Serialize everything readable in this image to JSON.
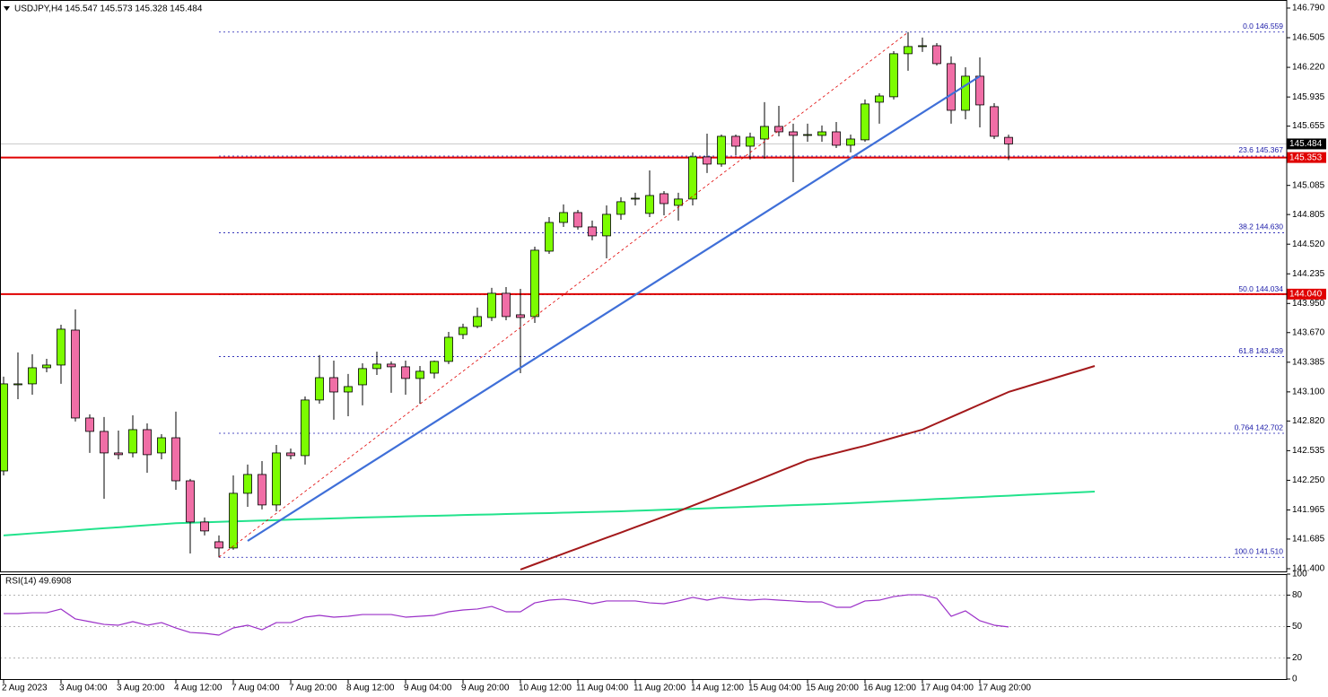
{
  "chart_data": [
    {
      "type": "candlestick",
      "title": "USDJPY,H4  145.547 145.573 145.328 145.484",
      "categories": [
        "2 Aug 2023",
        null,
        null,
        null,
        "3 Aug 04:00",
        null,
        null,
        null,
        "3 Aug 20:00",
        null,
        null,
        null,
        "4 Aug 12:00",
        null,
        null,
        null,
        "7 Aug 04:00",
        null,
        null,
        null,
        "7 Aug 20:00",
        null,
        null,
        null,
        "8 Aug 12:00",
        null,
        null,
        null,
        "9 Aug 04:00",
        null,
        null,
        null,
        "9 Aug 20:00",
        null,
        null,
        null,
        "10 Aug 12:00",
        null,
        null,
        null,
        "11 Aug 04:00",
        null,
        null,
        null,
        "11 Aug 20:00",
        null,
        null,
        null,
        "14 Aug 12:00",
        null,
        null,
        null,
        "15 Aug 04:00",
        null,
        null,
        null,
        "15 Aug 20:00",
        null,
        null,
        null,
        "16 Aug 12:00",
        null,
        null,
        null,
        "17 Aug 04:00",
        null,
        null,
        null,
        "17 Aug 20:00",
        null,
        null,
        null,
        null,
        null,
        null,
        null,
        null
      ],
      "open": [
        142.34,
        143.168,
        143.177,
        143.332,
        143.358,
        143.694,
        142.849,
        142.72,
        142.513,
        142.513,
        142.737,
        142.513,
        142.659,
        142.245,
        141.849,
        141.659,
        141.599,
        142.125,
        142.306,
        142.013,
        142.513,
        142.487,
        143.022,
        143.237,
        143.099,
        143.168,
        143.324,
        143.367,
        143.341,
        143.229,
        143.28,
        143.393,
        143.651,
        143.729,
        143.815,
        144.048,
        143.841,
        143.824,
        144.453,
        144.729,
        144.824,
        144.686,
        144.6,
        144.807,
        144.954,
        144.816,
        145.005,
        144.893,
        144.954,
        145.359,
        145.29,
        145.557,
        145.462,
        145.531,
        145.652,
        145.6,
        145.566,
        145.566,
        145.6,
        145.471,
        145.523,
        145.885,
        145.937,
        146.351,
        146.42,
        146.428,
        146.256,
        145.807,
        146.135,
        145.842,
        145.547,
        null,
        null,
        null,
        null,
        null,
        null
      ],
      "high": [
        143.246,
        143.479,
        143.462,
        143.418,
        143.746,
        143.893,
        142.884,
        142.858,
        142.728,
        142.875,
        142.797,
        142.694,
        142.91,
        142.263,
        141.892,
        141.72,
        142.297,
        142.401,
        142.435,
        142.59,
        142.556,
        143.056,
        143.453,
        143.401,
        143.272,
        143.375,
        143.487,
        143.393,
        143.401,
        143.349,
        143.401,
        143.677,
        143.755,
        143.91,
        144.1,
        144.108,
        144.091,
        144.496,
        144.781,
        144.902,
        144.85,
        144.747,
        144.893,
        144.971,
        145.014,
        145.229,
        145.031,
        145.014,
        145.402,
        145.583,
        145.574,
        145.574,
        145.592,
        145.885,
        145.85,
        145.678,
        145.678,
        145.661,
        145.695,
        145.574,
        145.911,
        145.971,
        146.376,
        146.559,
        146.506,
        146.454,
        146.325,
        146.221,
        146.316,
        145.876,
        145.573,
        null,
        null,
        null,
        null,
        null,
        null
      ],
      "low": [
        142.297,
        143.03,
        143.073,
        143.289,
        143.177,
        142.815,
        142.513,
        142.073,
        142.452,
        142.47,
        142.323,
        142.452,
        142.159,
        141.547,
        141.72,
        141.51,
        141.582,
        141.995,
        141.97,
        141.952,
        142.452,
        142.401,
        142.987,
        142.832,
        142.866,
        142.97,
        143.263,
        143.091,
        143.073,
        142.987,
        143.229,
        143.367,
        143.608,
        143.712,
        143.781,
        143.789,
        143.28,
        143.763,
        144.427,
        144.686,
        144.66,
        144.557,
        144.384,
        144.755,
        144.893,
        144.781,
        144.798,
        144.747,
        144.893,
        145.204,
        145.264,
        145.376,
        145.333,
        145.342,
        145.557,
        145.117,
        145.505,
        145.505,
        145.445,
        145.402,
        145.505,
        145.678,
        145.911,
        146.187,
        146.368,
        146.238,
        145.678,
        145.721,
        145.643,
        145.531,
        145.328,
        null,
        null,
        null,
        null,
        null,
        null
      ],
      "close": [
        143.177,
        143.177,
        143.332,
        143.358,
        143.703,
        142.849,
        142.72,
        142.513,
        142.496,
        142.737,
        142.496,
        142.659,
        142.245,
        141.849,
        141.763,
        141.599,
        142.125,
        142.306,
        142.013,
        142.513,
        142.487,
        143.022,
        143.237,
        143.099,
        143.151,
        143.324,
        143.367,
        143.341,
        143.229,
        143.298,
        143.393,
        143.625,
        143.72,
        143.824,
        144.048,
        143.824,
        143.815,
        144.462,
        144.729,
        144.824,
        144.686,
        144.6,
        144.807,
        144.928,
        144.962,
        144.988,
        144.91,
        144.954,
        145.359,
        145.29,
        145.557,
        145.462,
        145.549,
        145.652,
        145.6,
        145.566,
        145.574,
        145.6,
        145.471,
        145.531,
        145.868,
        145.945,
        146.351,
        146.42,
        146.428,
        146.256,
        145.807,
        146.135,
        145.859,
        145.557,
        145.484,
        null,
        null,
        null,
        null,
        null,
        null
      ],
      "up_color": "#7cfc00",
      "down_color": "#f06ea6",
      "ma_lines": [
        {
          "color": "#22e38c",
          "values": [
            141.72,
            141.73,
            141.74,
            141.749,
            141.759,
            141.769,
            141.779,
            141.789,
            141.798,
            141.808,
            141.818,
            141.828,
            141.838,
            141.842,
            141.846,
            141.851,
            141.855,
            141.859,
            141.863,
            141.867,
            141.872,
            141.876,
            141.88,
            141.884,
            141.888,
            141.893,
            141.896,
            141.899,
            141.903,
            141.906,
            141.909,
            141.912,
            141.916,
            141.919,
            141.922,
            141.926,
            141.929,
            141.932,
            141.935,
            141.939,
            141.942,
            141.945,
            141.949,
            141.952,
            141.957,
            141.962,
            141.967,
            141.972,
            141.976,
            141.981,
            141.986,
            141.991,
            141.996,
            142.001,
            142.006,
            142.011,
            142.015,
            142.02,
            142.025,
            142.03,
            142.037,
            142.043,
            142.05,
            142.056,
            142.063,
            142.07,
            142.076,
            142.083,
            142.089,
            142.096,
            142.102,
            142.109,
            142.116,
            142.122,
            142.129,
            142.135,
            142.142
          ]
        },
        {
          "color": "#a3191b",
          "values": [
            null,
            null,
            null,
            null,
            null,
            null,
            null,
            null,
            null,
            null,
            null,
            null,
            null,
            null,
            null,
            null,
            null,
            null,
            null,
            null,
            null,
            null,
            null,
            null,
            null,
            null,
            null,
            null,
            null,
            null,
            null,
            null,
            null,
            null,
            null,
            null,
            141.392,
            141.443,
            141.494,
            141.545,
            141.596,
            141.647,
            141.698,
            141.748,
            141.799,
            141.85,
            141.901,
            141.952,
            142.006,
            142.06,
            142.114,
            142.168,
            142.223,
            142.278,
            142.334,
            142.389,
            142.444,
            142.479,
            142.513,
            142.548,
            142.582,
            142.621,
            142.66,
            142.699,
            142.737,
            142.798,
            142.858,
            142.918,
            142.979,
            143.039,
            143.099,
            143.141,
            143.183,
            143.224,
            143.266,
            143.307,
            143.349
          ]
        }
      ],
      "fib_levels": [
        {
          "value": 146.559,
          "label": "0.0 146.559"
        },
        {
          "value": 145.367,
          "label": "23.6 145.367"
        },
        {
          "value": 144.63,
          "label": "38.2 144.630"
        },
        {
          "value": 144.034,
          "label": "50.0 144.034"
        },
        {
          "value": 143.439,
          "label": "61.8 143.439"
        },
        {
          "value": 142.702,
          "label": "0.764 142.702"
        },
        {
          "value": 141.51,
          "label": "100.0 141.510"
        }
      ],
      "fib_color": "#1a1ab0",
      "hlines": [
        145.353,
        {
          "value": 144.04,
          "label": "144.040"
        }
      ],
      "hline_color": "#e00000",
      "last_price": 145.484,
      "ylim": [
        141.374,
        146.833
      ],
      "yticks": [
        {
          "value": 146.79,
          "label": "146.790"
        },
        146.505,
        {
          "value": 146.22,
          "label": "146.220"
        },
        145.935,
        145.655,
        145.085,
        144.805,
        {
          "value": 144.52,
          "label": "144.520"
        },
        144.235,
        {
          "value": 143.95,
          "label": "143.950"
        },
        {
          "value": 143.67,
          "label": "143.670"
        },
        143.385,
        {
          "value": 143.1,
          "label": "143.100"
        },
        {
          "value": 142.82,
          "label": "142.820"
        },
        142.535,
        {
          "value": 142.25,
          "label": "142.250"
        },
        141.965,
        141.685,
        {
          "value": 141.4,
          "label": "141.400"
        }
      ],
      "grid": false
    },
    {
      "type": "line",
      "title": "RSI(14) 49.6908",
      "color": "#9b30c8",
      "values": [
        62.4,
        62.4,
        63.2,
        63.2,
        66.7,
        57.3,
        54.7,
        52.1,
        51.3,
        54.7,
        51.3,
        53.8,
        48.7,
        44.4,
        43.6,
        41.9,
        48.7,
        51.3,
        47.0,
        53.8,
        53.8,
        59.0,
        60.7,
        59.0,
        59.8,
        61.5,
        61.5,
        61.5,
        59.0,
        59.8,
        60.7,
        64.1,
        65.8,
        66.7,
        69.2,
        64.1,
        64.1,
        72.6,
        75.2,
        76.1,
        74.4,
        71.8,
        74.4,
        74.4,
        74.4,
        72.6,
        71.8,
        74.4,
        77.8,
        75.2,
        77.8,
        76.1,
        75.2,
        76.1,
        75.2,
        74.4,
        73.5,
        73.5,
        68.4,
        68.4,
        74.4,
        75.2,
        78.6,
        80.3,
        80.3,
        76.9,
        59.8,
        65.0,
        55.6,
        51.3,
        49.6908,
        null,
        null,
        null,
        null,
        null,
        null
      ],
      "levels": [
        80,
        50,
        20
      ],
      "ylim": [
        0,
        100
      ],
      "yticks": [
        100,
        80,
        50,
        20,
        0
      ]
    }
  ]
}
